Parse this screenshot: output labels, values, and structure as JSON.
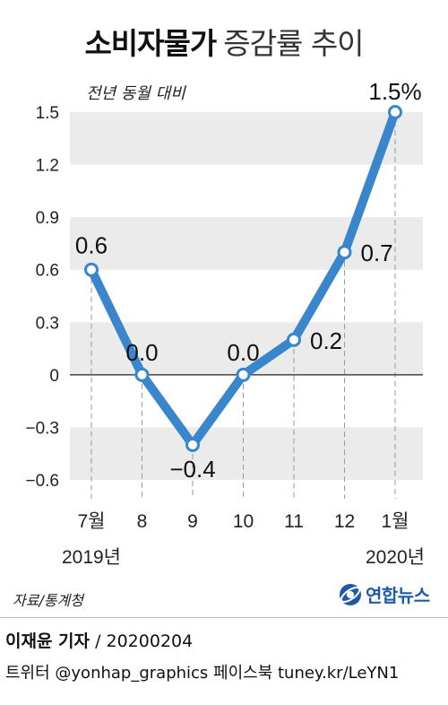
{
  "title": {
    "bold": "소비자물가",
    "light": "증감률 추이"
  },
  "chart_data": {
    "type": "line",
    "subtitle": "전년 동월 대비",
    "categories": [
      "7월",
      "8",
      "9",
      "10",
      "11",
      "12",
      "1월"
    ],
    "year_labels": [
      {
        "category_index": 0,
        "text": "2019년"
      },
      {
        "category_index": 6,
        "text": "2020년"
      }
    ],
    "series": [
      {
        "values": [
          0.6,
          0.0,
          -0.4,
          0.0,
          0.2,
          0.7,
          1.5
        ]
      }
    ],
    "data_labels": [
      "0.6",
      "0.0",
      "−0.4",
      "0.0",
      "0.2",
      "0.7",
      "1.5%"
    ],
    "y_ticks": [
      1.5,
      1.2,
      0.9,
      0.6,
      0.3,
      0,
      -0.3,
      -0.6
    ],
    "y_tick_labels": [
      "1.5",
      "1.2",
      "0.9",
      "0.6",
      "0.3",
      "0",
      "−0.3",
      "−0.6"
    ],
    "ylim": [
      -0.6,
      1.5
    ],
    "line_color": "#3a86cc",
    "band_color": "#ebebeb",
    "grid": true
  },
  "footer": {
    "source": "자료/통계청",
    "logo_text": "연합뉴스",
    "reporter_name": "이재윤 기자",
    "reporter_date": "/ 20200204",
    "social": "트위터 @yonhap_graphics  페이스북 tuney.kr/LeYN1"
  }
}
